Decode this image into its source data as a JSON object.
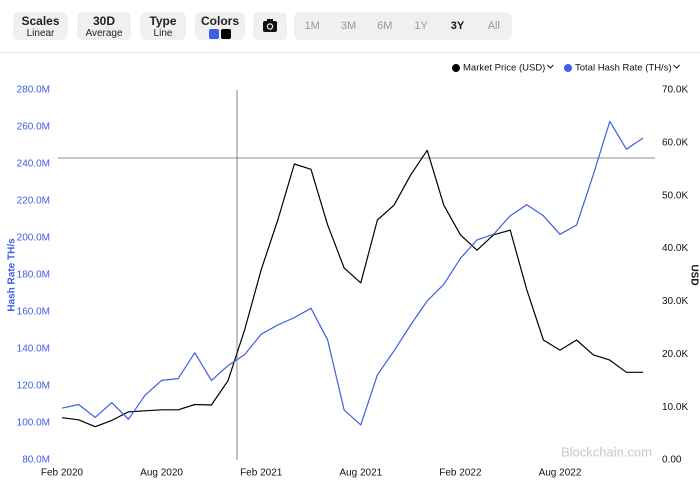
{
  "toolbar": {
    "buttons": [
      {
        "title": "Scales",
        "value": "Linear"
      },
      {
        "title": "30D",
        "value": "Average"
      },
      {
        "title": "Type",
        "value": "Line"
      }
    ],
    "colors_label": "Colors",
    "ranges": [
      "1M",
      "3M",
      "6M",
      "1Y",
      "3Y",
      "All"
    ],
    "active_range": 4
  },
  "watermark": "Blockchain.com",
  "chart_data": {
    "type": "line",
    "y_label": "Hash Rate TH/s",
    "y2_label": "USD",
    "x": [
      "2020-02",
      "2020-03",
      "2020-04",
      "2020-05",
      "2020-06",
      "2020-07",
      "2020-08",
      "2020-09",
      "2020-10",
      "2020-11",
      "2020-12",
      "2021-01",
      "2021-02",
      "2021-03",
      "2021-04",
      "2021-05",
      "2021-06",
      "2021-07",
      "2021-08",
      "2021-09",
      "2021-10",
      "2021-11",
      "2021-12",
      "2022-01",
      "2022-02",
      "2022-03",
      "2022-04",
      "2022-05",
      "2022-06",
      "2022-07",
      "2022-08",
      "2022-09",
      "2022-10",
      "2022-11",
      "2022-12",
      "2023-01"
    ],
    "xlim": [
      "2020-02",
      "2023-01"
    ],
    "xticks": [
      {
        "value": "2020-02",
        "label": "Feb 2020"
      },
      {
        "value": "2020-08",
        "label": "Aug 2020"
      },
      {
        "value": "2021-02",
        "label": "Feb 2021"
      },
      {
        "value": "2021-08",
        "label": "Aug 2021"
      },
      {
        "value": "2022-02",
        "label": "Feb 2022"
      },
      {
        "value": "2022-08",
        "label": "Aug 2022"
      }
    ],
    "ylim": [
      80000000,
      280000000
    ],
    "yticks": [
      {
        "value": 80000000,
        "label": "80.0M"
      },
      {
        "value": 100000000,
        "label": "100.0M"
      },
      {
        "value": 120000000,
        "label": "120.0M"
      },
      {
        "value": 140000000,
        "label": "140.0M"
      },
      {
        "value": 160000000,
        "label": "160.0M"
      },
      {
        "value": 180000000,
        "label": "180.0M"
      },
      {
        "value": 200000000,
        "label": "200.0M"
      },
      {
        "value": 220000000,
        "label": "220.0M"
      },
      {
        "value": 240000000,
        "label": "240.0M"
      },
      {
        "value": 260000000,
        "label": "260.0M"
      },
      {
        "value": 280000000,
        "label": "280.0M"
      }
    ],
    "y2lim": [
      0,
      70000
    ],
    "y2ticks": [
      {
        "value": 0,
        "label": "0.00"
      },
      {
        "value": 10000,
        "label": "10.0K"
      },
      {
        "value": 20000,
        "label": "20.0K"
      },
      {
        "value": 30000,
        "label": "30.0K"
      },
      {
        "value": 40000,
        "label": "40.0K"
      },
      {
        "value": 50000,
        "label": "50.0K"
      },
      {
        "value": 60000,
        "label": "60.0K"
      },
      {
        "value": 70000,
        "label": "70.0K"
      }
    ],
    "series": [
      {
        "name": "Market Price (USD)",
        "color": "#000000",
        "axis": "y2",
        "values": [
          8000,
          7600,
          6300,
          7500,
          9100,
          9300,
          9500,
          9500,
          10500,
          10400,
          15000,
          24600,
          36000,
          45400,
          56000,
          55000,
          44500,
          36300,
          33500,
          45400,
          48200,
          53900,
          58600,
          48200,
          42600,
          39700,
          42600,
          43500,
          32200,
          22700,
          20800,
          22700,
          19900,
          18900,
          16600,
          16600
        ]
      },
      {
        "name": "Total Hash Rate (TH/s)",
        "color": "#3d5ee8",
        "axis": "y",
        "values": [
          108000000,
          110000000,
          103000000,
          111000000,
          102000000,
          115000000,
          123000000,
          124000000,
          138000000,
          123000000,
          131000000,
          137000000,
          148000000,
          153000000,
          157000000,
          162000000,
          145000000,
          107000000,
          99000000,
          126000000,
          139000000,
          153000000,
          166000000,
          175000000,
          189000000,
          199000000,
          202000000,
          212000000,
          218000000,
          212000000,
          202000000,
          207000000,
          234000000,
          263000000,
          248000000,
          254000000
        ]
      }
    ]
  }
}
